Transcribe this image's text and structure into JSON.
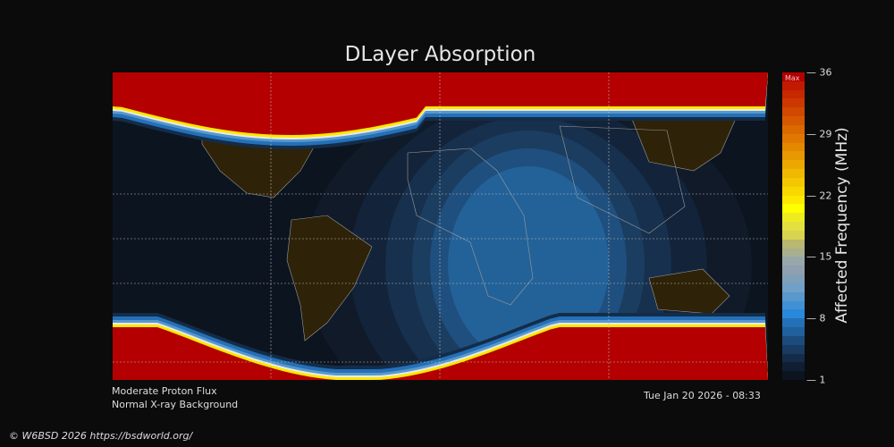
{
  "title": "DLayer Absorption",
  "status": {
    "line1": "Moderate Proton Flux",
    "line2": "Normal X-ray Background"
  },
  "timestamp": "Tue Jan 20 2026 - 08:33",
  "copyright": "© W6BSD 2026 https://bsdworld.org/",
  "colorbar": {
    "label": "Affected Frequency (MHz)",
    "max_label": "Max",
    "ticks": [
      "36",
      "29",
      "22",
      "15",
      "8",
      "1"
    ],
    "range": [
      1,
      36
    ],
    "colors": [
      "#b40000",
      "#c21a00",
      "#c82800",
      "#cc3800",
      "#d24800",
      "#d65800",
      "#dc6800",
      "#e07800",
      "#e48800",
      "#e89800",
      "#eca800",
      "#f0b800",
      "#f4c800",
      "#f8d800",
      "#fce800",
      "#ffff00",
      "#eeec20",
      "#e4e040",
      "#d8d450",
      "#b8b870",
      "#a8b090",
      "#98a8a8",
      "#90a0b0",
      "#80a0b8",
      "#70a0c8",
      "#5898cc",
      "#4090d4",
      "#2a88dc",
      "#2470b8",
      "#20609c",
      "#1c4c7c",
      "#183c62",
      "#142c48",
      "#101e34",
      "#0c1420"
    ]
  },
  "map_colors": {
    "night": "#0c1420",
    "land": "#2e2208",
    "polar": "#b40000",
    "coast": "#9a9a9a"
  }
}
